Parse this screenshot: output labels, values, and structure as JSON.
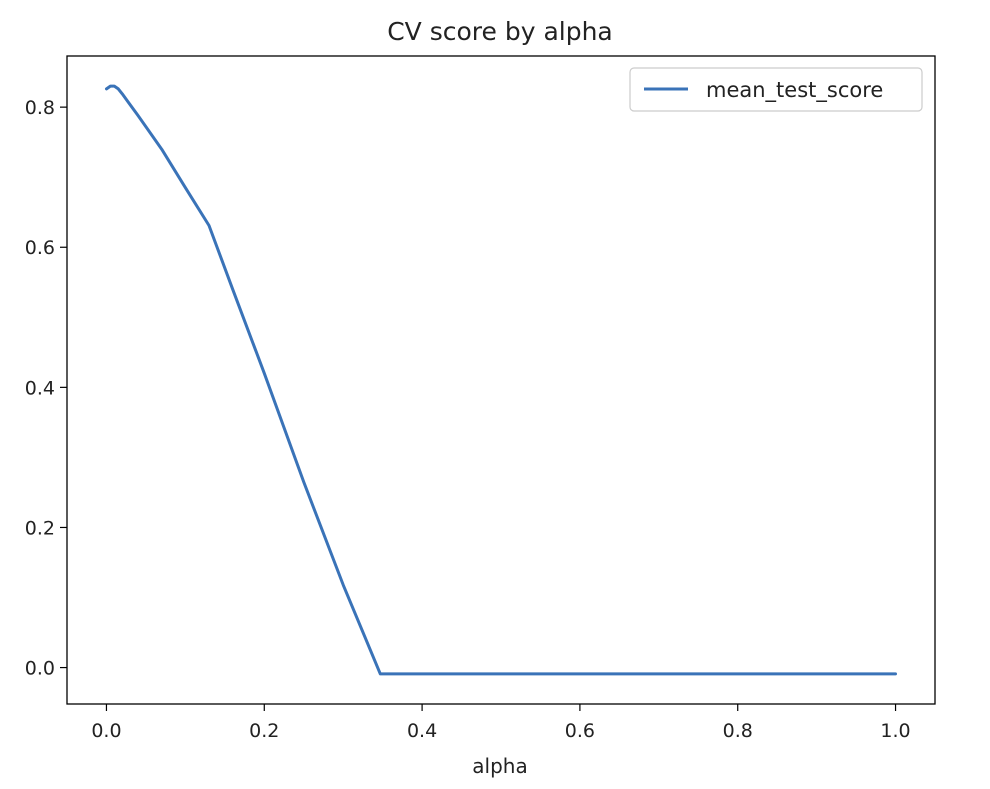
{
  "chart_data": {
    "type": "line",
    "title": "CV score by alpha",
    "xlabel": "alpha",
    "ylabel": "",
    "xlim": [
      -0.05,
      1.05
    ],
    "ylim": [
      -0.052,
      0.873
    ],
    "xticks": [
      0.0,
      0.2,
      0.4,
      0.6,
      0.8,
      1.0
    ],
    "xtick_labels": [
      "0.0",
      "0.2",
      "0.4",
      "0.6",
      "0.8",
      "1.0"
    ],
    "yticks": [
      0.0,
      0.2,
      0.4,
      0.6,
      0.8
    ],
    "ytick_labels": [
      "0.0",
      "0.2",
      "0.4",
      "0.6",
      "0.8"
    ],
    "grid": false,
    "legend_position": "top-right",
    "series": [
      {
        "name": "mean_test_score",
        "color": "#3a73b8",
        "x": [
          0.0,
          0.005,
          0.01,
          0.015,
          0.02,
          0.04,
          0.07,
          0.1,
          0.13,
          0.16,
          0.2,
          0.25,
          0.3,
          0.347,
          0.4,
          0.5,
          0.6,
          0.7,
          0.8,
          0.9,
          1.0
        ],
        "y": [
          0.826,
          0.83,
          0.83,
          0.826,
          0.819,
          0.788,
          0.74,
          0.685,
          0.631,
          0.54,
          0.42,
          0.265,
          0.118,
          -0.009,
          -0.009,
          -0.009,
          -0.009,
          -0.009,
          -0.009,
          -0.009,
          -0.009
        ]
      }
    ]
  }
}
